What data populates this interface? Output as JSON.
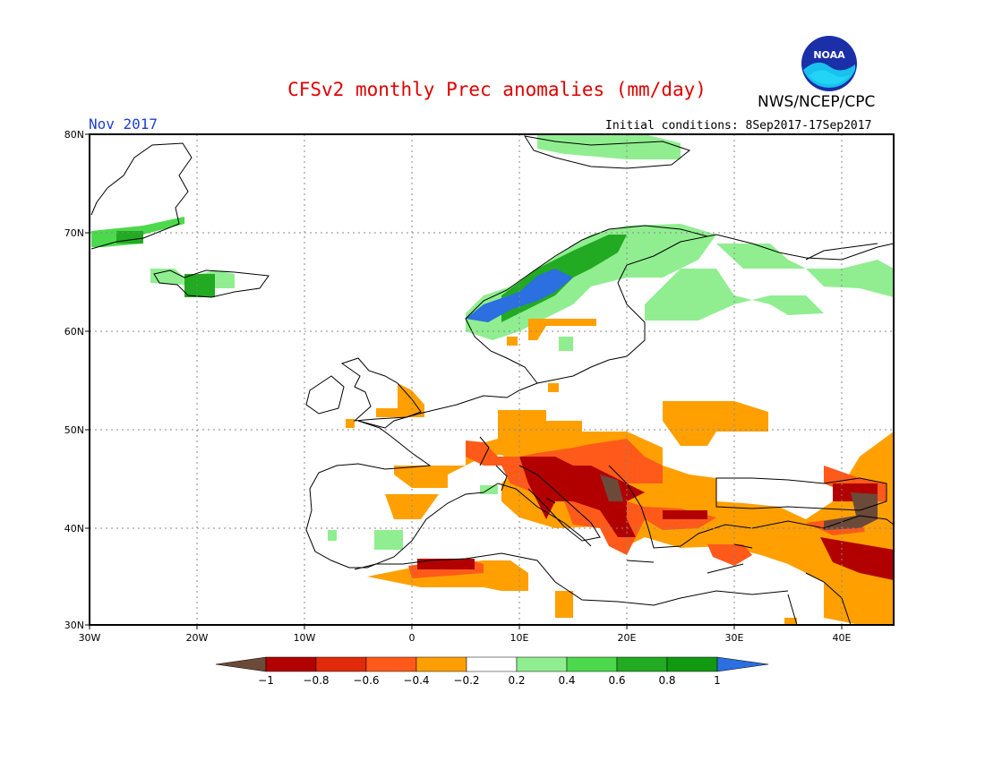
{
  "header": {
    "title": "CFSv2 monthly Prec anomalies (mm/day)",
    "org": "NWS/NCEP/CPC",
    "month": "Nov 2017",
    "initial_conditions": "Initial conditions: 8Sep2017-17Sep2017",
    "logo_text": "NOAA"
  },
  "axes": {
    "lat_labels": [
      "30N",
      "40N",
      "50N",
      "60N",
      "70N",
      "80N"
    ],
    "lon_labels": [
      "30W",
      "20W",
      "10W",
      "0",
      "10E",
      "20E",
      "30E",
      "40E"
    ]
  },
  "colorbar": {
    "tick_labels": [
      "-1",
      "-0.8",
      "-0.6",
      "-0.4",
      "-0.2",
      "0.2",
      "0.4",
      "0.6",
      "0.8",
      "1"
    ],
    "colors": [
      "#6b4a3a",
      "#b20000",
      "#e02a0a",
      "#ff5a1a",
      "#ffa000",
      "#ffffff",
      "#90ee90",
      "#4cd94c",
      "#22aa22",
      "#119911",
      "#2b6fe0"
    ]
  }
}
